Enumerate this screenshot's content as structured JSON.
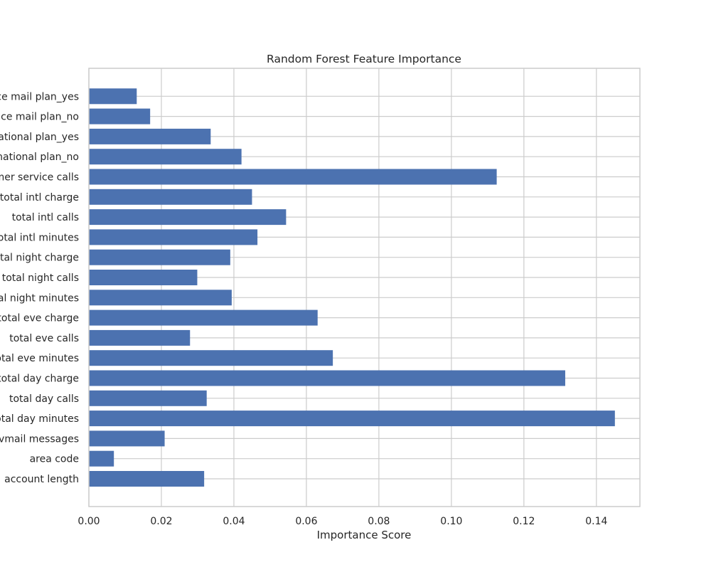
{
  "chart_data": {
    "type": "bar",
    "orientation": "horizontal",
    "title": "Random Forest Feature Importance",
    "xlabel": "Importance Score",
    "ylabel": "",
    "xlim": [
      0,
      0.152
    ],
    "x_ticks": [
      "0.00",
      "0.02",
      "0.04",
      "0.06",
      "0.08",
      "0.10",
      "0.12",
      "0.14"
    ],
    "grid": true,
    "bar_color": "#4c72b0",
    "grid_color": "#cccccc",
    "categories": [
      "account length",
      "area code",
      "vmail messages",
      "total day minutes",
      "total day calls",
      "total day charge",
      "total eve minutes",
      "total eve calls",
      "total eve charge",
      "total night minutes",
      "total night calls",
      "total night charge",
      "total intl minutes",
      "total intl calls",
      "total intl charge",
      "customer service calls",
      "international plan_no",
      "international plan_yes",
      "voice mail plan_no",
      "voice mail plan_yes"
    ],
    "values": [
      0.0318,
      0.0069,
      0.0209,
      0.1451,
      0.0325,
      0.1314,
      0.0673,
      0.0279,
      0.0631,
      0.0394,
      0.0299,
      0.039,
      0.0465,
      0.0544,
      0.045,
      0.1125,
      0.0421,
      0.0336,
      0.0169,
      0.0132
    ]
  }
}
